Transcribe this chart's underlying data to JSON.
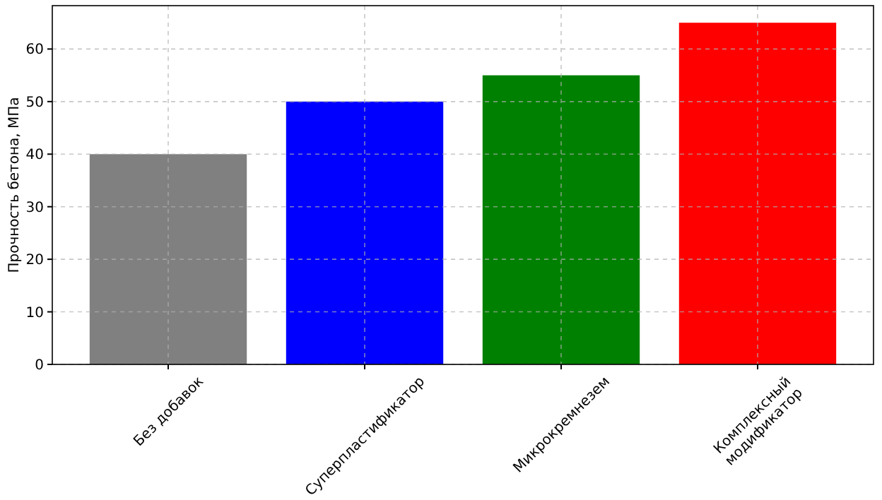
{
  "chart_data": {
    "type": "bar",
    "ylabel": "Прочность бетона, МПа",
    "categories": [
      "Без добавок",
      "Суперпластификатор",
      "Микрокремнезем",
      "Комплексный\nмодификатор"
    ],
    "values": [
      40,
      50,
      55,
      65
    ],
    "colors": [
      "#808080",
      "#0000ff",
      "#008000",
      "#ff0000"
    ],
    "ylim": [
      0,
      68.25
    ],
    "yticks": [
      0,
      10,
      20,
      30,
      40,
      50,
      60
    ],
    "grid": true
  }
}
